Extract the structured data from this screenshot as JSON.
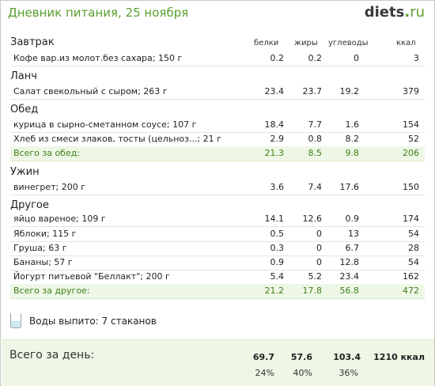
{
  "header": {
    "title": "Дневник питания, 25 ноября",
    "logo_main": "diets",
    "logo_dot": ".",
    "logo_tld": "ru"
  },
  "columns": {
    "protein": "белки",
    "fat": "жиры",
    "carbs": "углеводы",
    "kcal": "ккал"
  },
  "meals": [
    {
      "name": "Завтрак",
      "items": [
        {
          "name": "Кофе вар.из молот.без сахара; 150 г",
          "protein": "0.2",
          "fat": "0.2",
          "carbs": "0",
          "kcal": "3"
        }
      ]
    },
    {
      "name": "Ланч",
      "items": [
        {
          "name": "Салат свекольный с сыром; 263 г",
          "protein": "23.4",
          "fat": "23.7",
          "carbs": "19.2",
          "kcal": "379"
        }
      ]
    },
    {
      "name": "Обед",
      "items": [
        {
          "name": "курица в сырно-сметанном соусе; 107 г",
          "protein": "18.4",
          "fat": "7.7",
          "carbs": "1.6",
          "kcal": "154"
        },
        {
          "name": "Хлеб из смеси злаков, тосты (цельноз...; 21 г",
          "protein": "2.9",
          "fat": "0.8",
          "carbs": "8.2",
          "kcal": "52"
        }
      ],
      "total": {
        "label": "Всего за обед:",
        "protein": "21.3",
        "fat": "8.5",
        "carbs": "9.8",
        "kcal": "206"
      }
    },
    {
      "name": "Ужин",
      "items": [
        {
          "name": "винегрет; 200 г",
          "protein": "3.6",
          "fat": "7.4",
          "carbs": "17.6",
          "kcal": "150"
        }
      ]
    },
    {
      "name": "Другое",
      "items": [
        {
          "name": "яйцо вареное; 109 г",
          "protein": "14.1",
          "fat": "12.6",
          "carbs": "0.9",
          "kcal": "174"
        },
        {
          "name": "Яблоки; 115 г",
          "protein": "0.5",
          "fat": "0",
          "carbs": "13",
          "kcal": "54"
        },
        {
          "name": "Груша; 63 г",
          "protein": "0.3",
          "fat": "0",
          "carbs": "6.7",
          "kcal": "28"
        },
        {
          "name": "Бананы; 57 г",
          "protein": "0.9",
          "fat": "0",
          "carbs": "12.8",
          "kcal": "54"
        },
        {
          "name": "Йогурт питьевой \"Беллакт\"; 200 г",
          "protein": "5.4",
          "fat": "5.2",
          "carbs": "23.4",
          "kcal": "162"
        }
      ],
      "total": {
        "label": "Всего за другое:",
        "protein": "21.2",
        "fat": "17.8",
        "carbs": "56.8",
        "kcal": "472"
      }
    }
  ],
  "water": {
    "text": "Воды выпито: 7 стаканов",
    "icon": "water-glass-icon"
  },
  "day_total": {
    "label": "Всего за день:",
    "protein": "69.7",
    "fat": "57.6",
    "carbs": "103.4",
    "kcal": "1210 ккал",
    "protein_pct": "24%",
    "fat_pct": "40%",
    "carbs_pct": "36%"
  }
}
